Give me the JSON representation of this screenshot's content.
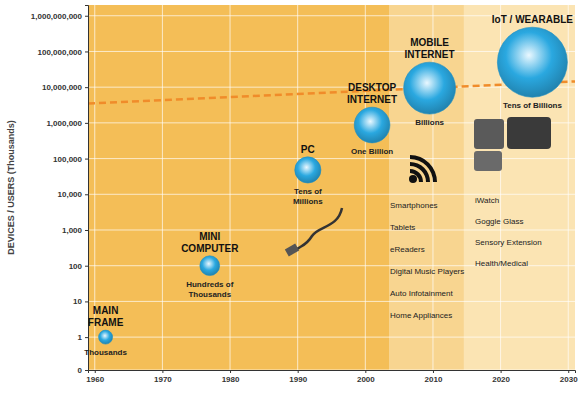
{
  "chart_data": {
    "type": "bubble",
    "x": [
      1961.6,
      1977,
      1991.5,
      2001,
      2009.5,
      2024.7
    ],
    "values": [
      1,
      100,
      48000,
      870000,
      9400000,
      50000000
    ],
    "sizes": [
      4,
      8,
      14,
      26,
      55,
      100
    ],
    "labels": [
      "MAIN\nFRAME",
      "MINI\nCOMPUTER",
      "PC",
      "DESKTOP\nINTERNET",
      "MOBILE\nINTERNET",
      "IoT / WEARABLE"
    ],
    "sublabels": [
      "Thousands",
      "Hundreds of\nThousands",
      "Tens of\nMillions",
      "One Billion",
      "Billions",
      "Tens of Billions"
    ],
    "color": "#2aa8e0",
    "ylabel": "DEVICES / USERS (Thousands)",
    "xlim": [
      1959,
      2031
    ],
    "xticks": [
      1960,
      1970,
      1980,
      1990,
      2000,
      2010,
      2020,
      2030
    ],
    "ylim": [
      0.12,
      2000000000
    ],
    "yticks": [
      {
        "value": 0.12,
        "label": "0"
      },
      1,
      10,
      100,
      {
        "value": 1000,
        "label": "1,000"
      },
      {
        "value": 10000,
        "label": "10,000"
      },
      {
        "value": 100000,
        "label": "100,000"
      },
      {
        "value": 1000000,
        "label": "1,000,000"
      },
      {
        "value": 10000000,
        "label": "10,000,000"
      },
      {
        "value": 100000000,
        "label": "100,000,000"
      },
      {
        "value": 1000000000,
        "label": "1,000,000,000"
      }
    ],
    "log": "y",
    "grid": true,
    "trend": {
      "x": [
        1959,
        2031
      ],
      "values": [
        3500000,
        14500000
      ],
      "color": "#f08c2a",
      "line_style": "dashed"
    },
    "regions": [
      {
        "x0": 2003.5,
        "x1": 2014.5,
        "color": "#f8d590"
      },
      {
        "x0": 2014.5,
        "x1": 2031,
        "color": "#fbe4b3"
      }
    ],
    "annotations": [
      {
        "lines": [
          "Smartphones",
          "Tablets",
          "eReaders",
          "Digital Music Players",
          "Auto Infotainment",
          "Home Appliances"
        ]
      },
      {
        "lines": [
          "iWatch",
          "Goggle Glass",
          "Sensory Extension",
          "Health/Medical"
        ]
      }
    ]
  }
}
